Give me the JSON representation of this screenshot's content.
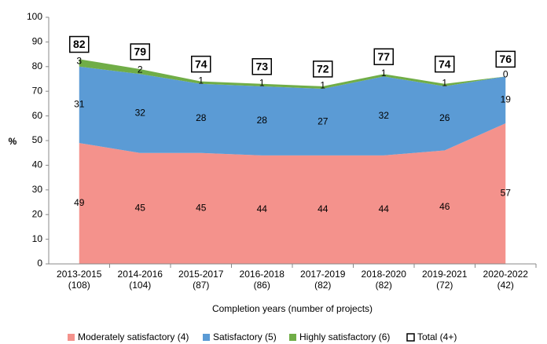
{
  "chart_data": {
    "type": "stacked_area",
    "categories": [
      [
        "2013-2015",
        "(108)"
      ],
      [
        "2014-2016",
        "(104)"
      ],
      [
        "2015-2017",
        "(87)"
      ],
      [
        "2016-2018",
        "(86)"
      ],
      [
        "2017-2019",
        "(82)"
      ],
      [
        "2018-2020",
        "(82)"
      ],
      [
        "2019-2021",
        "(72)"
      ],
      [
        "2020-2022",
        "(42)"
      ]
    ],
    "series": [
      {
        "name": "Moderately satisfactory (4)",
        "color": "#f4928c",
        "values": [
          49,
          45,
          45,
          44,
          44,
          44,
          46,
          57
        ]
      },
      {
        "name": "Satisfactory (5)",
        "color": "#5b9bd5",
        "values": [
          31,
          32,
          28,
          28,
          27,
          32,
          26,
          19
        ]
      },
      {
        "name": "Highly satisfactory (6)",
        "color": "#70ad47",
        "values": [
          3,
          2,
          1,
          1,
          1,
          1,
          1,
          0
        ]
      }
    ],
    "total": {
      "name": "Total (4+)",
      "values": [
        82,
        79,
        74,
        73,
        72,
        77,
        74,
        76
      ]
    },
    "ylabel": "%",
    "xlabel": "Completion years (number of projects)",
    "ylim": [
      0,
      100
    ],
    "yticks": [
      0,
      10,
      20,
      30,
      40,
      50,
      60,
      70,
      80,
      90,
      100
    ],
    "grid": false
  }
}
